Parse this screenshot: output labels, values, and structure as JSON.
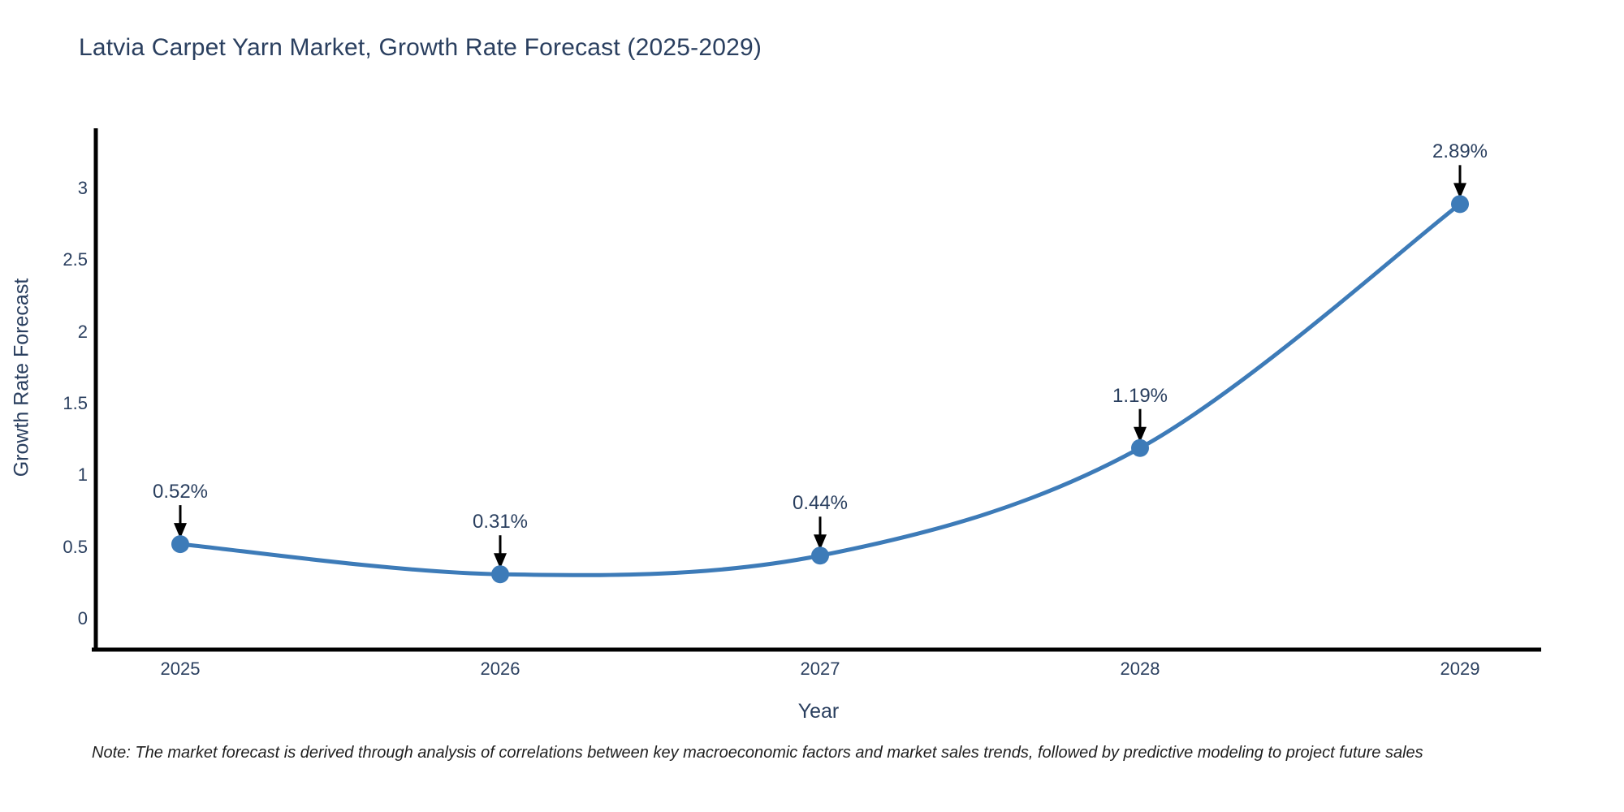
{
  "page": {
    "background": "#ffffff"
  },
  "chart_data": {
    "type": "line",
    "title": "Latvia Carpet Yarn Market, Growth Rate Forecast (2025-2029)",
    "xlabel": "Year",
    "ylabel": "Growth Rate Forecast",
    "categories": [
      "2025",
      "2026",
      "2027",
      "2028",
      "2029"
    ],
    "series": [
      {
        "name": "Growth Rate Forecast",
        "values": [
          0.52,
          0.31,
          0.44,
          1.19,
          2.89
        ],
        "point_labels": [
          "0.52%",
          "0.31%",
          "0.44%",
          "1.19%",
          "2.89%"
        ]
      }
    ],
    "ytick_labels": [
      "0",
      "0.5",
      "1",
      "1.5",
      "2",
      "2.5",
      "3"
    ],
    "yticks": [
      0,
      0.5,
      1,
      1.5,
      2,
      2.5,
      3
    ],
    "ylim": [
      -0.24,
      3.42
    ],
    "line_shape": "spline",
    "markers": true,
    "grid": false,
    "legend_position": "none",
    "annotations_have_arrows": true,
    "colors": {
      "line": "#3d7bb8",
      "marker": "#3d7bb8",
      "axis_spine": "#000000",
      "chart_text": "#2a3f5f",
      "annotation_arrow": "#000000",
      "note_text": "#1f1f1f"
    }
  },
  "note": "Note: The market forecast is derived through analysis of correlations between key macroeconomic factors and market sales trends, followed by predictive modeling to project future sales"
}
